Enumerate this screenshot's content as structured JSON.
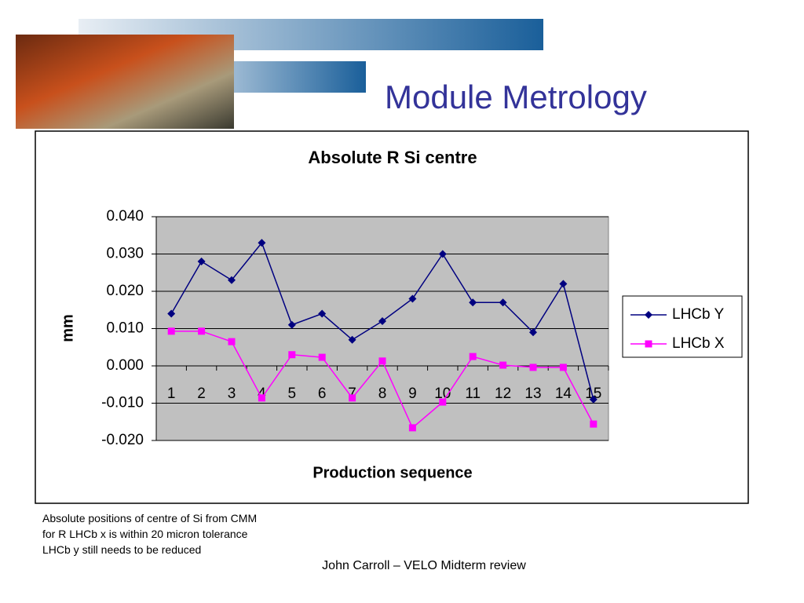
{
  "slide": {
    "title": "Module Metrology",
    "notes": [
      "Absolute positions of centre of Si from CMM",
      "for R  LHCb x is within 20 micron tolerance",
      "LHCb y still needs to be reduced"
    ],
    "footer": "John Carroll – VELO Midterm review"
  },
  "chart_data": {
    "type": "line",
    "title": "Absolute R Si centre",
    "x_label": "Production sequence",
    "y_label": "mm",
    "categories": [
      "1",
      "2",
      "3",
      "4",
      "5",
      "6",
      "7",
      "8",
      "9",
      "10",
      "11",
      "12",
      "13",
      "14",
      "15"
    ],
    "series": [
      {
        "name": "LHCb Y",
        "color": "#000080",
        "marker": "diamond",
        "values": [
          0.014,
          0.028,
          0.023,
          0.033,
          0.011,
          0.014,
          0.007,
          0.012,
          0.018,
          0.03,
          0.017,
          0.017,
          0.009,
          0.022,
          -0.009
        ]
      },
      {
        "name": "LHCb X",
        "color": "#ff00ff",
        "marker": "square",
        "values": [
          0.0093,
          0.0093,
          0.0065,
          -0.0086,
          0.003,
          0.0023,
          -0.0086,
          0.0013,
          -0.0166,
          -0.0097,
          0.0025,
          0.0002,
          -0.0004,
          -0.0004,
          -0.0156
        ]
      }
    ],
    "ylim": [
      -0.02,
      0.04
    ],
    "yticks": [
      {
        "value": 0.04,
        "label": "0.040"
      },
      {
        "value": 0.03,
        "label": "0.030"
      },
      {
        "value": 0.02,
        "label": "0.020"
      },
      {
        "value": 0.01,
        "label": "0.010"
      },
      {
        "value": 0,
        "label": "0.000"
      },
      {
        "value": -0.01,
        "label": "-0.010"
      },
      {
        "value": -0.02,
        "label": "-0.020"
      }
    ],
    "grid": true,
    "plot_background": "#c0c0c0",
    "legend": "right"
  }
}
